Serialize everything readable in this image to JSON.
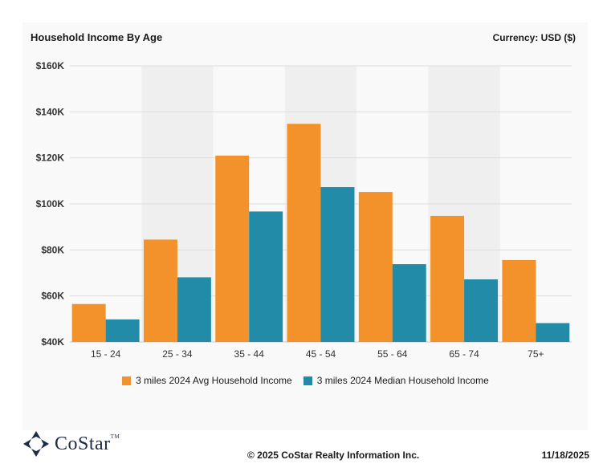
{
  "header": {
    "title": "Household Income By Age",
    "currency": "Currency: USD ($)"
  },
  "chart_data": {
    "type": "bar",
    "categories": [
      "15 - 24",
      "25 - 34",
      "35 - 44",
      "45 - 54",
      "55 - 64",
      "65 - 74",
      "75+"
    ],
    "series": [
      {
        "name": "3 miles 2024 Avg Household Income",
        "color": "#f3922b",
        "values": [
          56500,
          84500,
          121000,
          134800,
          105200,
          94800,
          75600
        ]
      },
      {
        "name": "3 miles 2024 Median Household Income",
        "color": "#218ba8",
        "values": [
          49800,
          68100,
          96700,
          107300,
          73800,
          67200,
          48200
        ]
      }
    ],
    "ylim": [
      40000,
      160000
    ],
    "yticks": [
      40000,
      60000,
      80000,
      100000,
      120000,
      140000,
      160000
    ],
    "ytick_labels": [
      "$40K",
      "$60K",
      "$80K",
      "$100K",
      "$120K",
      "$140K",
      "$160K"
    ],
    "grid": true,
    "legend_position": "bottom"
  },
  "footer": {
    "logo_text": "CoStar",
    "logo_tm": "TM",
    "copyright": "© 2025 CoStar Realty Information Inc.",
    "date": "11/18/2025"
  }
}
